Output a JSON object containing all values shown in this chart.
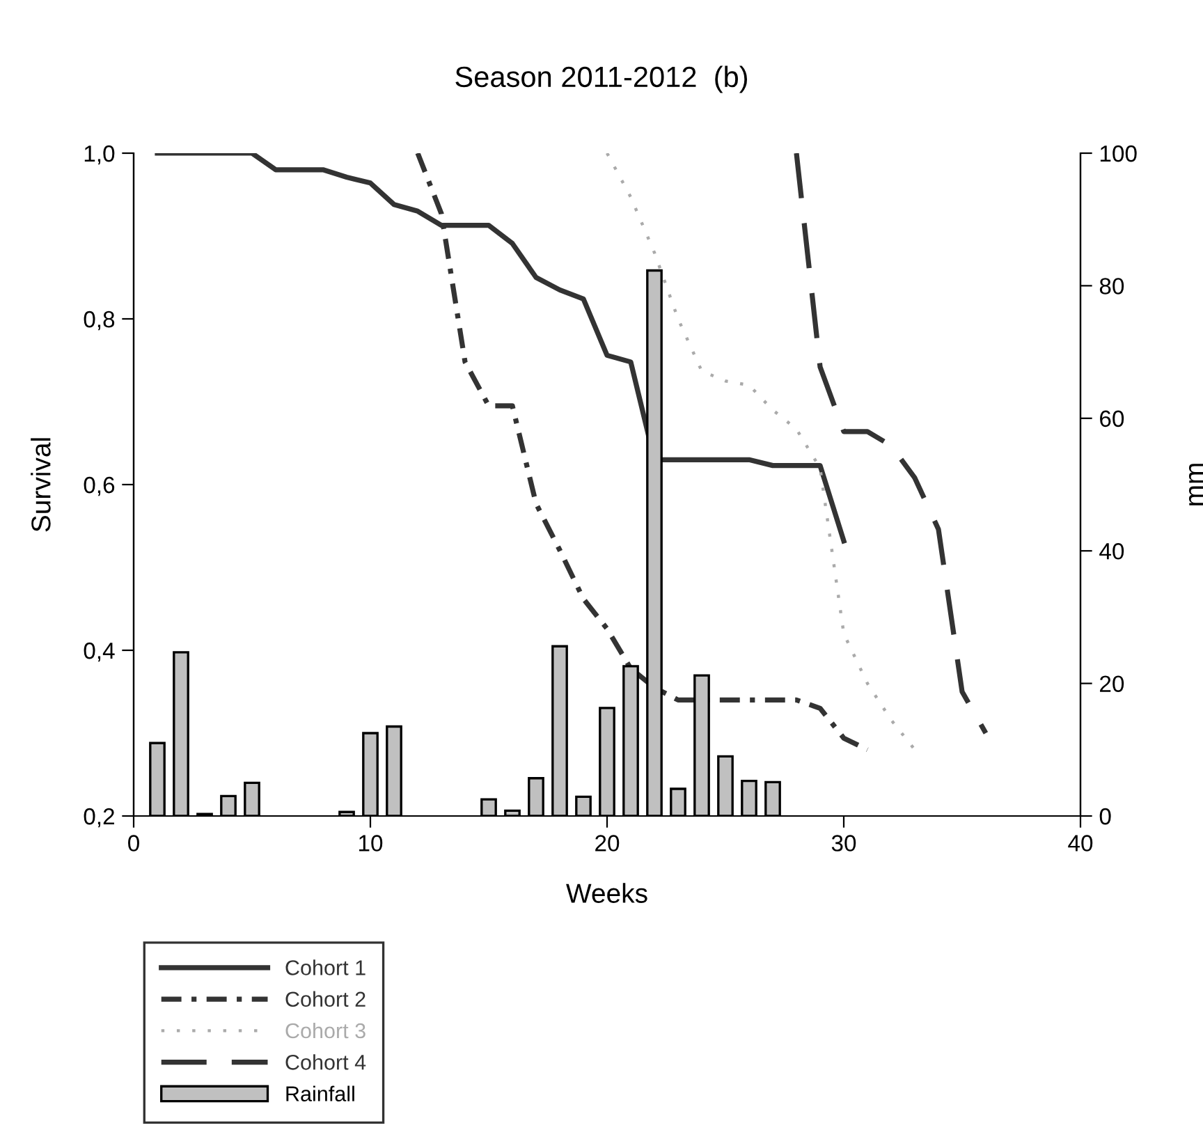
{
  "chart_data": {
    "type": "line",
    "title": "Season 2011-2012  (b)",
    "xlabel": "Weeks",
    "ylabel": "Survival",
    "y2label": "mm",
    "xlim": [
      0,
      40
    ],
    "xticks": [
      0,
      10,
      20,
      30,
      40
    ],
    "ylim": [
      0.2,
      1.0
    ],
    "yticks": [
      {
        "value": 0.2,
        "label": "0,2"
      },
      {
        "value": 0.4,
        "label": "0,4"
      },
      {
        "value": 0.6,
        "label": "0,6"
      },
      {
        "value": 0.8,
        "label": "0,8"
      },
      {
        "value": 1.0,
        "label": "1,0"
      }
    ],
    "y2lim": [
      0,
      100
    ],
    "y2ticks": [
      0,
      20,
      40,
      60,
      80,
      100
    ],
    "grid": false,
    "legend": "bottom left",
    "marker": "none",
    "series": [
      {
        "name": "Cohort 1",
        "line_style": "solid",
        "color": "#333333",
        "x": [
          1,
          5,
          6,
          8,
          9,
          10,
          11,
          12,
          13,
          15,
          16,
          17,
          18,
          19,
          20,
          21,
          22,
          26,
          27,
          29,
          30
        ],
        "values": [
          1.0,
          1.0,
          0.98,
          0.98,
          0.971,
          0.964,
          0.938,
          0.93,
          0.913,
          0.913,
          0.891,
          0.85,
          0.835,
          0.824,
          0.756,
          0.748,
          0.63,
          0.63,
          0.623,
          0.623,
          0.532
        ]
      },
      {
        "name": "Cohort 2",
        "line_style": "dashdot",
        "color": "#333333",
        "x": [
          12,
          13,
          14,
          15,
          16,
          17,
          18,
          19,
          20,
          21,
          22,
          23,
          28,
          29,
          30,
          31
        ],
        "values": [
          1.0,
          0.927,
          0.748,
          0.695,
          0.695,
          0.577,
          0.521,
          0.462,
          0.426,
          0.378,
          0.355,
          0.34,
          0.34,
          0.33,
          0.294,
          0.28
        ]
      },
      {
        "name": "Cohort 3",
        "line_style": "dotted",
        "color": "#aaaaaa",
        "x": [
          20,
          21,
          22,
          23,
          24,
          25,
          26,
          27,
          28,
          29,
          30,
          31,
          32,
          33
        ],
        "values": [
          1.0,
          0.947,
          0.88,
          0.8,
          0.737,
          0.725,
          0.72,
          0.69,
          0.667,
          0.62,
          0.42,
          0.36,
          0.316,
          0.28
        ]
      },
      {
        "name": "Cohort 4",
        "line_style": "dashed",
        "color": "#333333",
        "x": [
          28,
          29,
          30,
          31,
          32,
          33,
          34,
          35,
          36
        ],
        "values": [
          1.0,
          0.742,
          0.664,
          0.664,
          0.647,
          0.608,
          0.546,
          0.35,
          0.3
        ]
      },
      {
        "name": "Rainfall",
        "type": "bar",
        "axis": "y2",
        "color": "#c0c0c0",
        "x": [
          1,
          2,
          3,
          4,
          5,
          9,
          10,
          11,
          15,
          16,
          17,
          18,
          19,
          20,
          21,
          22,
          23,
          24,
          25,
          26,
          27
        ],
        "values": [
          11,
          24.7,
          0.3,
          3,
          5,
          0.6,
          12.5,
          13.5,
          2.5,
          0.8,
          5.7,
          25.6,
          2.9,
          16.3,
          22.6,
          82.3,
          4.1,
          21.2,
          9,
          5.3,
          5.1
        ]
      }
    ]
  }
}
